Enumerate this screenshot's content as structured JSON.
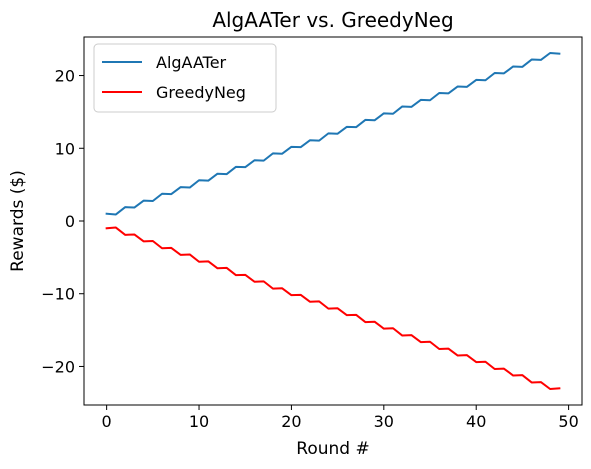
{
  "chart_data": {
    "type": "line",
    "title": "AlgAATer vs. GreedyNeg",
    "xlabel": "Round #",
    "ylabel": "Rewards ($)",
    "xlim": [
      -2.45,
      51.45
    ],
    "ylim": [
      -25.3,
      25.3
    ],
    "xticks": [
      0,
      10,
      20,
      30,
      40,
      50
    ],
    "yticks": [
      -20,
      -10,
      0,
      10,
      20
    ],
    "grid": false,
    "legend_position": "top-left",
    "x": [
      0,
      1,
      2,
      3,
      4,
      5,
      6,
      7,
      8,
      9,
      10,
      11,
      12,
      13,
      14,
      15,
      16,
      17,
      18,
      19,
      20,
      21,
      22,
      23,
      24,
      25,
      26,
      27,
      28,
      29,
      30,
      31,
      32,
      33,
      34,
      35,
      36,
      37,
      38,
      39,
      40,
      41,
      42,
      43,
      44,
      45,
      46,
      47,
      48,
      49
    ],
    "series": [
      {
        "name": "AlgAATer",
        "color": "#1f77b4",
        "values": [
          1.0,
          0.9,
          1.9,
          1.85,
          2.8,
          2.75,
          3.75,
          3.7,
          4.65,
          4.6,
          5.6,
          5.55,
          6.5,
          6.45,
          7.45,
          7.4,
          8.35,
          8.3,
          9.3,
          9.25,
          10.2,
          10.15,
          11.1,
          11.05,
          12.05,
          12.0,
          12.95,
          12.9,
          13.9,
          13.85,
          14.8,
          14.75,
          15.75,
          15.7,
          16.65,
          16.6,
          17.6,
          17.55,
          18.5,
          18.45,
          19.4,
          19.35,
          20.35,
          20.3,
          21.25,
          21.2,
          22.2,
          22.15,
          23.1,
          23.0
        ]
      },
      {
        "name": "GreedyNeg",
        "color": "#ff0000",
        "values": [
          -1.0,
          -0.9,
          -1.9,
          -1.85,
          -2.8,
          -2.75,
          -3.75,
          -3.7,
          -4.65,
          -4.6,
          -5.6,
          -5.55,
          -6.5,
          -6.45,
          -7.45,
          -7.4,
          -8.35,
          -8.3,
          -9.3,
          -9.25,
          -10.2,
          -10.15,
          -11.1,
          -11.05,
          -12.05,
          -12.0,
          -12.95,
          -12.9,
          -13.9,
          -13.85,
          -14.8,
          -14.75,
          -15.75,
          -15.7,
          -16.65,
          -16.6,
          -17.6,
          -17.55,
          -18.5,
          -18.45,
          -19.4,
          -19.35,
          -20.35,
          -20.3,
          -21.25,
          -21.2,
          -22.2,
          -22.15,
          -23.1,
          -23.0
        ]
      }
    ]
  }
}
